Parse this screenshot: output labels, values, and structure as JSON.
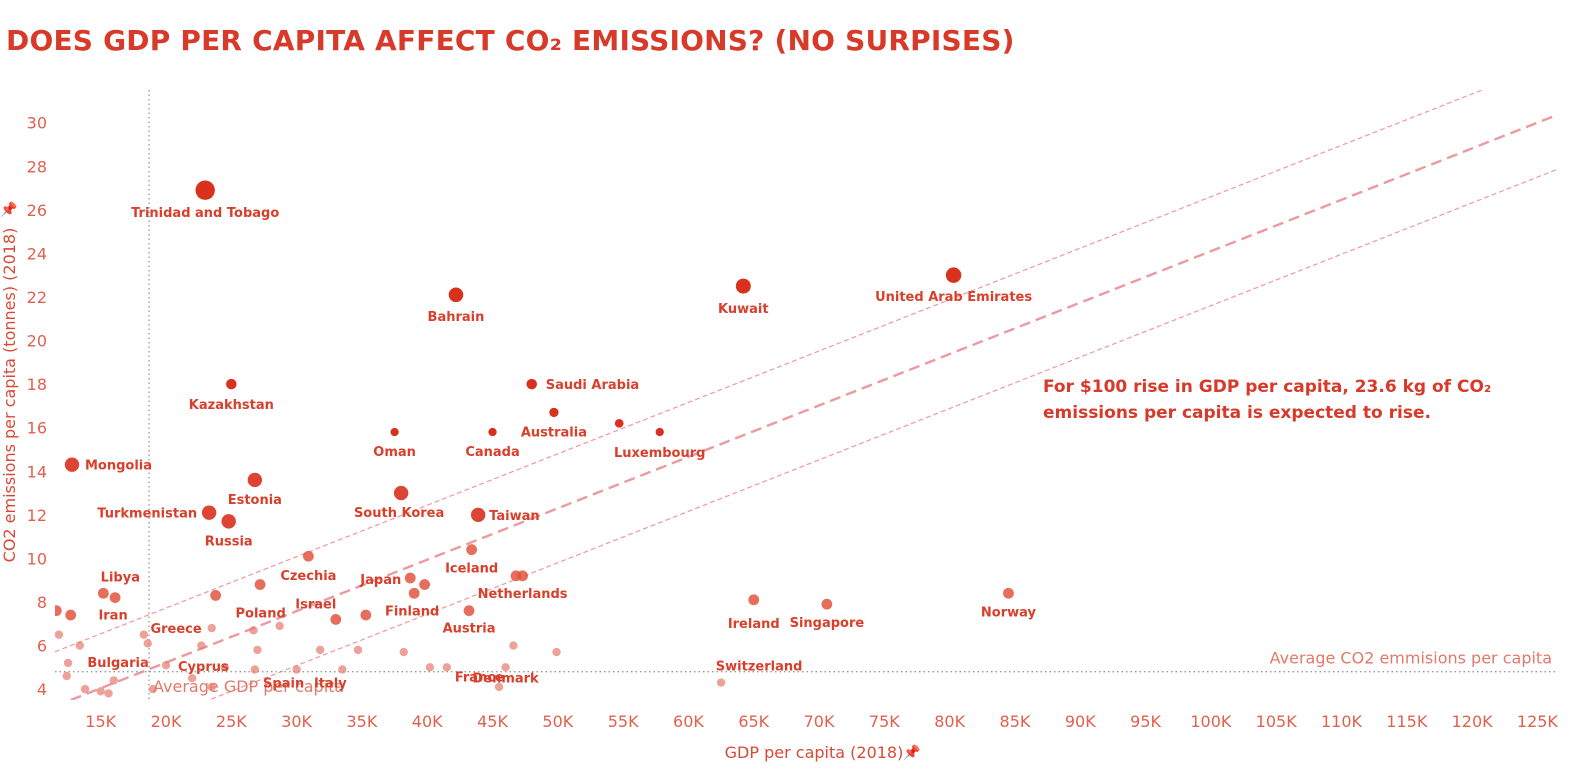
{
  "title": "DOES GDP PER CAPITA AFFECT CO₂ EMISSIONS? (NO SURPISES)",
  "colors": {
    "accent": "#d8321f",
    "mid": "#e05540",
    "light": "#f0a095",
    "trend": "#ec9aa0",
    "ref": "#9a9a9a"
  },
  "chart_data": {
    "type": "scatter",
    "xlabel": "GDP per capita (2018)",
    "ylabel": "CO2 emissions per capita (tonnes) (2018)",
    "xlim": [
      11500,
      126500
    ],
    "ylim": [
      3.5,
      31.5
    ],
    "x_ticks": [
      15000,
      20000,
      25000,
      30000,
      35000,
      40000,
      45000,
      50000,
      55000,
      60000,
      65000,
      70000,
      75000,
      80000,
      85000,
      90000,
      95000,
      100000,
      105000,
      110000,
      115000,
      120000,
      125000
    ],
    "x_tick_labels": [
      "15K",
      "20K",
      "25K",
      "30K",
      "35K",
      "40K",
      "45K",
      "50K",
      "55K",
      "60K",
      "65K",
      "70K",
      "75K",
      "80K",
      "85K",
      "90K",
      "95K",
      "100K",
      "105K",
      "110K",
      "115K",
      "120K",
      "125K"
    ],
    "y_ticks": [
      4,
      6,
      8,
      10,
      12,
      14,
      16,
      18,
      20,
      22,
      24,
      26,
      28,
      30
    ],
    "y_tick_labels": [
      "4",
      "6",
      "8",
      "10",
      "12",
      "14",
      "16",
      "18",
      "20",
      "22",
      "24",
      "26",
      "28",
      "30"
    ],
    "grid": false,
    "legend": "none",
    "reference_lines": [
      {
        "axis": "x",
        "value": 18700,
        "label": "Average GDP per capita"
      },
      {
        "axis": "y",
        "value": 4.8,
        "label": "Average CO2 emmisions per capita"
      }
    ],
    "trend": {
      "slope": 0.000236,
      "intercept": 0.5,
      "band": 2.5
    },
    "annotation": [
      "For $100 rise in GDP per capita, 23.6 kg of CO₂",
      "emissions per capita is expected to rise."
    ],
    "points": [
      {
        "label": "Trinidad and Tobago",
        "x": 23000,
        "y": 26.9
      },
      {
        "label": "Bahrain",
        "x": 42200,
        "y": 22.1
      },
      {
        "label": "Kuwait",
        "x": 64200,
        "y": 22.5
      },
      {
        "label": "United Arab Emirates",
        "x": 80300,
        "y": 23.0
      },
      {
        "label": "Kazakhstan",
        "x": 25000,
        "y": 18.0
      },
      {
        "label": "Saudi Arabia",
        "x": 48000,
        "y": 18.0
      },
      {
        "label": "",
        "x": 49700,
        "y": 16.7
      },
      {
        "label": "Australia",
        "x": 49700,
        "y": 16.7
      },
      {
        "label": "Oman",
        "x": 37500,
        "y": 15.8
      },
      {
        "label": "Canada",
        "x": 45000,
        "y": 15.8
      },
      {
        "label": "",
        "x": 54700,
        "y": 16.2
      },
      {
        "label": "Luxembourg",
        "x": 57800,
        "y": 15.8
      },
      {
        "label": "Mongolia",
        "x": 12800,
        "y": 14.3
      },
      {
        "label": "Estonia",
        "x": 26800,
        "y": 13.6
      },
      {
        "label": "South Korea",
        "x": 38000,
        "y": 13.0
      },
      {
        "label": "Turkmenistan",
        "x": 23300,
        "y": 12.1
      },
      {
        "label": "Russia",
        "x": 24800,
        "y": 11.7
      },
      {
        "label": "Taiwan",
        "x": 43900,
        "y": 12.0
      },
      {
        "label": "Iceland",
        "x": 43400,
        "y": 10.4
      },
      {
        "label": "Czechia",
        "x": 30900,
        "y": 10.1
      },
      {
        "label": "Japan",
        "x": 38700,
        "y": 9.1
      },
      {
        "label": "",
        "x": 39800,
        "y": 8.8
      },
      {
        "label": "Finland",
        "x": 39000,
        "y": 8.4
      },
      {
        "label": "",
        "x": 46800,
        "y": 9.2
      },
      {
        "label": "Netherlands",
        "x": 47300,
        "y": 9.2
      },
      {
        "label": "Libya",
        "x": 15200,
        "y": 8.4
      },
      {
        "label": "Iran",
        "x": 16100,
        "y": 8.2
      },
      {
        "label": "",
        "x": 27200,
        "y": 8.8
      },
      {
        "label": "Poland",
        "x": 23800,
        "y": 8.3
      },
      {
        "label": "Israel",
        "x": 33000,
        "y": 7.2
      },
      {
        "label": "",
        "x": 35300,
        "y": 7.4
      },
      {
        "label": "Austria",
        "x": 43200,
        "y": 7.6
      },
      {
        "label": "Ireland",
        "x": 65000,
        "y": 8.1
      },
      {
        "label": "Singapore",
        "x": 70600,
        "y": 7.9
      },
      {
        "label": "Norway",
        "x": 84500,
        "y": 8.4
      },
      {
        "label": "",
        "x": 11600,
        "y": 7.6
      },
      {
        "label": "",
        "x": 12700,
        "y": 7.4
      },
      {
        "label": "",
        "x": 28700,
        "y": 6.9
      },
      {
        "label": "",
        "x": 26700,
        "y": 6.7
      },
      {
        "label": "Greece",
        "x": 23500,
        "y": 6.8
      },
      {
        "label": "",
        "x": 11800,
        "y": 6.5
      },
      {
        "label": "",
        "x": 18300,
        "y": 6.5
      },
      {
        "label": "",
        "x": 18600,
        "y": 6.1
      },
      {
        "label": "",
        "x": 13400,
        "y": 6.0
      },
      {
        "label": "",
        "x": 22700,
        "y": 6.0
      },
      {
        "label": "",
        "x": 27000,
        "y": 5.8
      },
      {
        "label": "",
        "x": 31800,
        "y": 5.8
      },
      {
        "label": "",
        "x": 34700,
        "y": 5.8
      },
      {
        "label": "",
        "x": 38200,
        "y": 5.7
      },
      {
        "label": "",
        "x": 46600,
        "y": 6.0
      },
      {
        "label": "",
        "x": 49900,
        "y": 5.7
      },
      {
        "label": "Bulgaria",
        "x": 12500,
        "y": 5.2
      },
      {
        "label": "Cyprus",
        "x": 20000,
        "y": 5.1
      },
      {
        "label": "",
        "x": 24500,
        "y": 5.0
      },
      {
        "label": "",
        "x": 26800,
        "y": 4.9
      },
      {
        "label": "Spain",
        "x": 30000,
        "y": 4.9
      },
      {
        "label": "Italy",
        "x": 33500,
        "y": 4.9
      },
      {
        "label": "",
        "x": 40200,
        "y": 5.0
      },
      {
        "label": "France",
        "x": 41500,
        "y": 5.0
      },
      {
        "label": "Denmark",
        "x": 46000,
        "y": 5.0
      },
      {
        "label": "",
        "x": 12400,
        "y": 4.6
      },
      {
        "label": "",
        "x": 16000,
        "y": 4.4
      },
      {
        "label": "",
        "x": 22000,
        "y": 4.5
      },
      {
        "label": "",
        "x": 13800,
        "y": 4.0
      },
      {
        "label": "",
        "x": 15000,
        "y": 3.9
      },
      {
        "label": "",
        "x": 15600,
        "y": 3.8
      },
      {
        "label": "",
        "x": 19000,
        "y": 4.0
      },
      {
        "label": "",
        "x": 23500,
        "y": 4.1
      },
      {
        "label": "",
        "x": 45500,
        "y": 4.1
      },
      {
        "label": "Switzerland",
        "x": 62500,
        "y": 4.3
      }
    ]
  }
}
